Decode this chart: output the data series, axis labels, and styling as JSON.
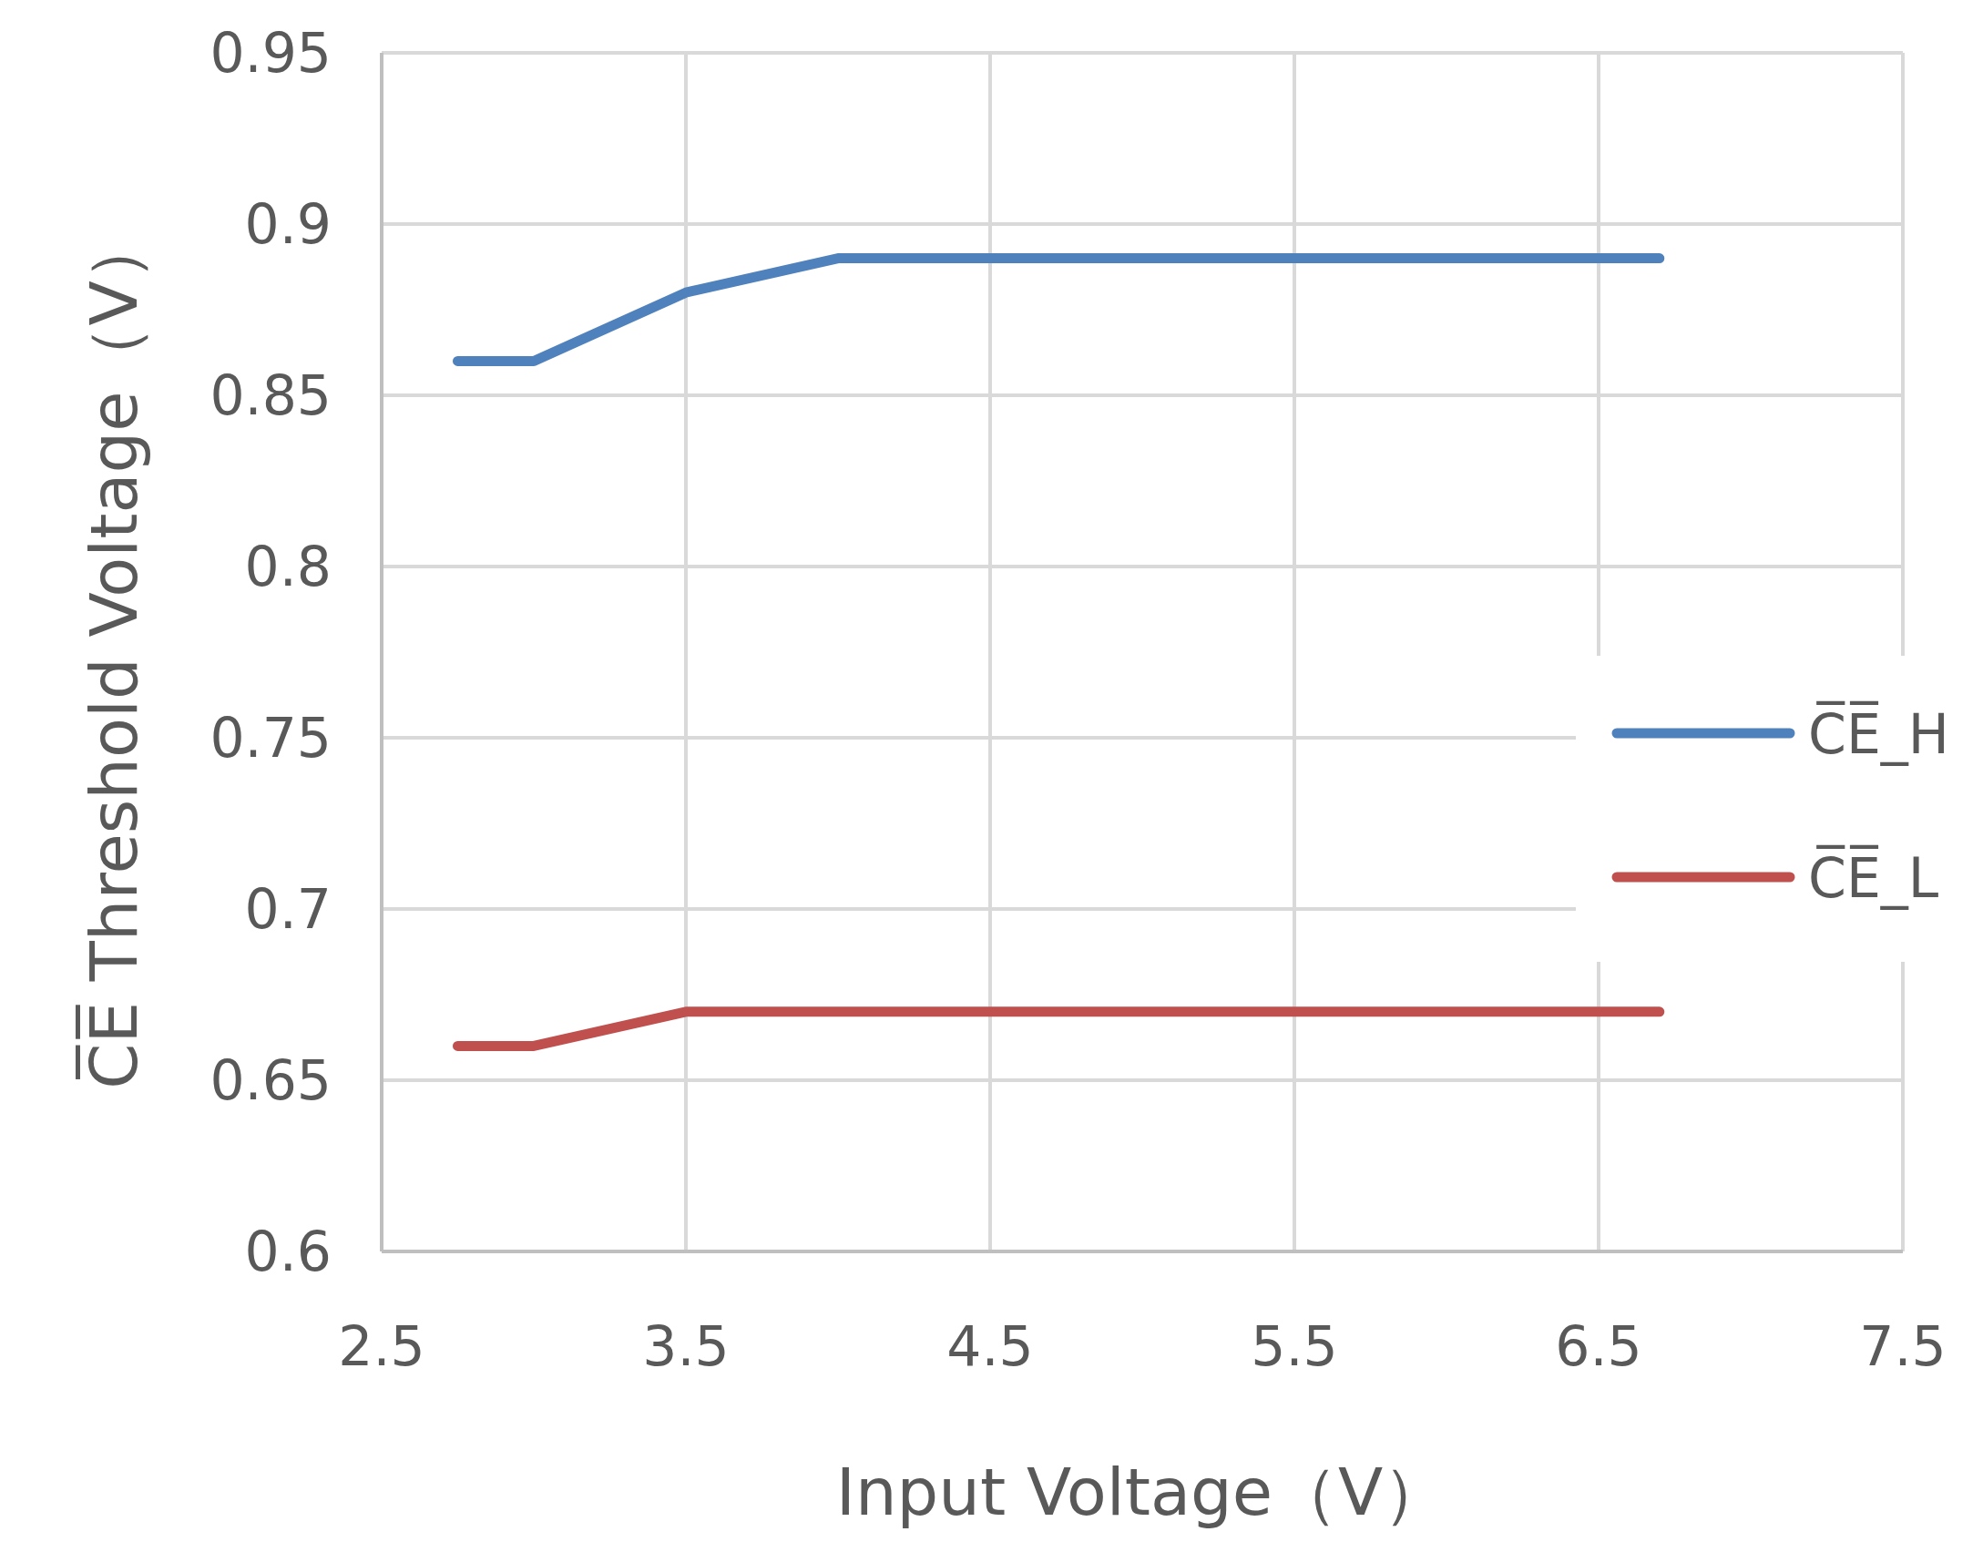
{
  "chart_data": {
    "type": "line",
    "xlabel": "Input Voltage（V）",
    "ylabel": "C̅E̅ Threshold Voltage（V）",
    "series": [
      {
        "name": "C̅E̅_H",
        "color": "#4f81bd",
        "x": [
          2.75,
          3.0,
          3.5,
          4.0,
          6.7
        ],
        "values": [
          0.86,
          0.86,
          0.88,
          0.89,
          0.89
        ]
      },
      {
        "name": "C̅E̅_L",
        "color": "#c0504d",
        "x": [
          2.75,
          3.0,
          3.5,
          6.7
        ],
        "values": [
          0.66,
          0.66,
          0.67,
          0.67
        ]
      }
    ],
    "xlim": [
      2.5,
      7.5
    ],
    "xticks": [
      2.5,
      3.5,
      4.5,
      5.5,
      6.5,
      7.5
    ],
    "ylim": [
      0.6,
      0.95
    ],
    "yticks": [
      0.6,
      0.65,
      0.7,
      0.75,
      0.8,
      0.85,
      0.9,
      0.95
    ],
    "grid": true,
    "legend": "right",
    "marker": "none",
    "line_style": "solid"
  }
}
